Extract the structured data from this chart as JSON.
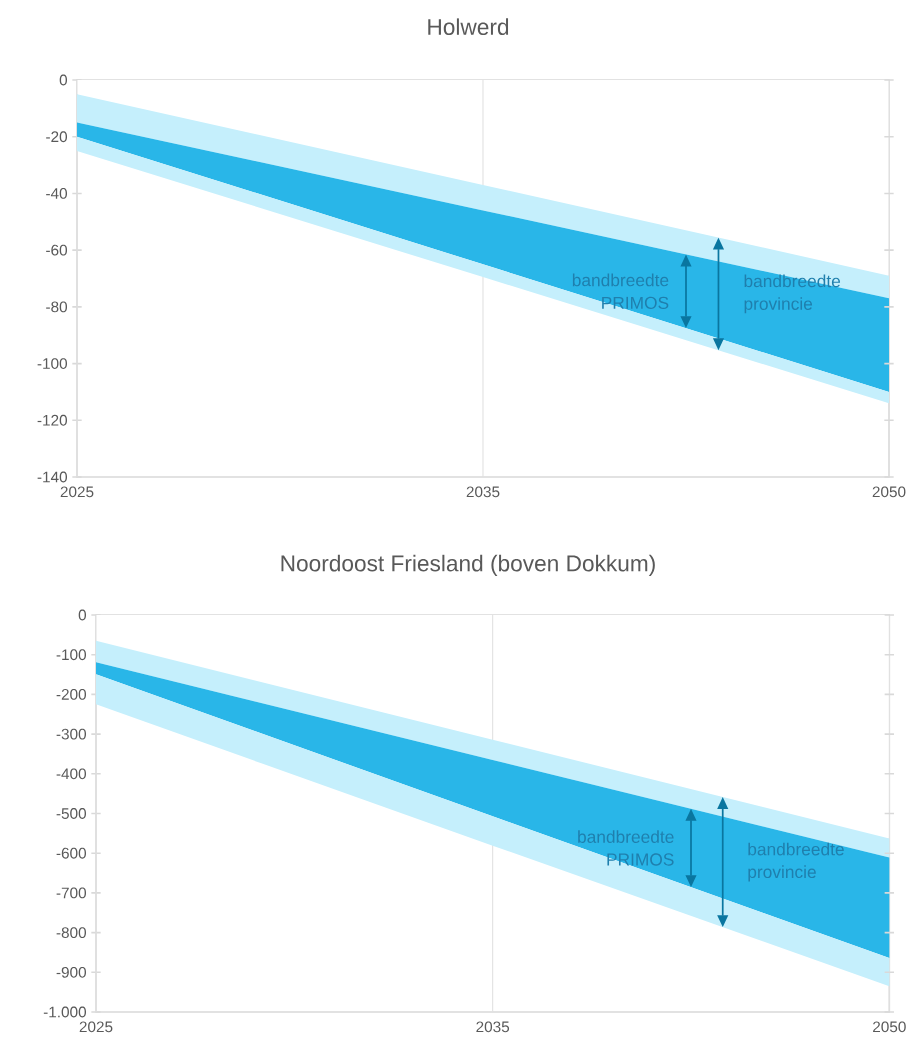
{
  "chart_data": [
    {
      "type": "area",
      "stacked": true,
      "title": "Holwerd",
      "categories": [
        "2025",
        "2035",
        "2050"
      ],
      "ylim": [
        -140,
        0
      ],
      "yticks": [
        -140,
        -120,
        -100,
        -80,
        -60,
        -40,
        -20,
        0
      ],
      "grid": "x",
      "series": [
        {
          "color": "#ffffff",
          "values": [
            -5,
            -37,
            -69
          ]
        },
        {
          "color": "#c5effc",
          "values": [
            -10,
            -9,
            -8
          ]
        },
        {
          "color": "#29b6e8",
          "values": [
            -5,
            -19,
            -33
          ]
        },
        {
          "color": "#c5effc",
          "values": [
            -5,
            -4.5,
            -4
          ]
        }
      ],
      "annotations": [
        "bandbreedte PRIMOS",
        "bandbreedte provincie"
      ]
    },
    {
      "type": "area",
      "stacked": true,
      "title": "Noordoost Friesland (boven Dokkum)",
      "categories": [
        "2025",
        "2035",
        "2050"
      ],
      "ylim": [
        -1000,
        0
      ],
      "yticks": [
        {
          "value": -1000,
          "label": "-1.000"
        },
        -900,
        -800,
        -700,
        -600,
        -500,
        -400,
        -300,
        -200,
        -100,
        0
      ],
      "grid": "x",
      "series": [
        {
          "color": "#ffffff",
          "values": [
            -65,
            -314,
            -563
          ]
        },
        {
          "color": "#c5effc",
          "values": [
            -54,
            -51,
            -48
          ]
        },
        {
          "color": "#29b6e8",
          "values": [
            -30,
            -142,
            -253
          ]
        },
        {
          "color": "#c5effc",
          "values": [
            -76,
            -74,
            -71
          ]
        }
      ],
      "annotations": [
        "bandbreedte PRIMOS",
        "bandbreedte provincie"
      ]
    }
  ]
}
